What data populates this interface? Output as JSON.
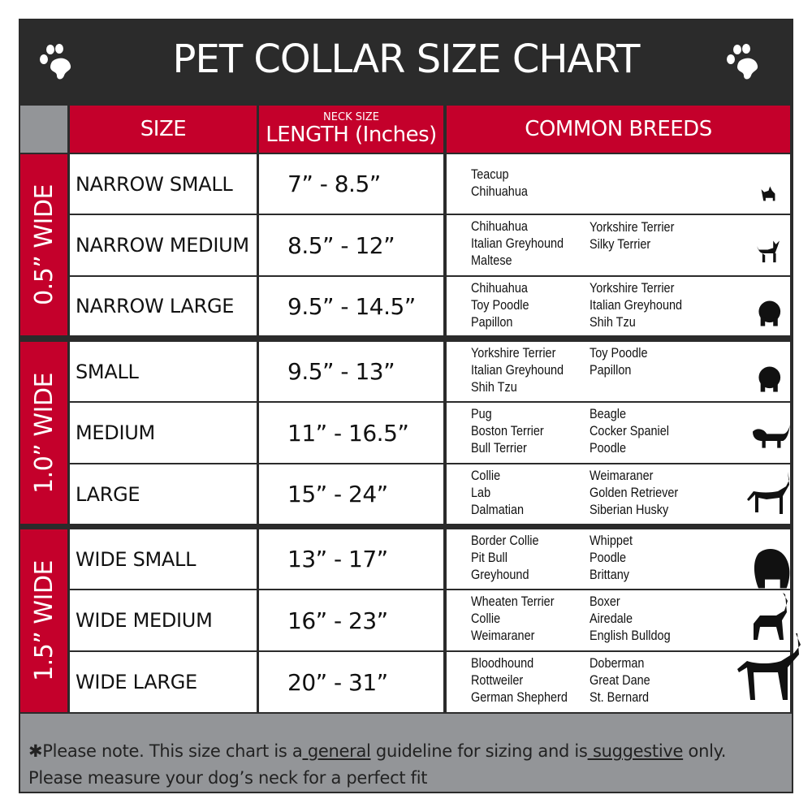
{
  "title": "PET COLLAR SIZE CHART",
  "headers": {
    "size": "SIZE",
    "length_small": "NECK SIZE",
    "length": "LENGTH (Inches)",
    "breeds": "COMMON BREEDS"
  },
  "groups": [
    "0.5” WIDE",
    "1.0” WIDE",
    "1.5” WIDE"
  ],
  "rows": [
    {
      "size": "NARROW SMALL",
      "length": "7” - 8.5”",
      "col1": [
        "Teacup",
        "Chihuahua"
      ],
      "col2": [],
      "dog": "yorkie-silhouette"
    },
    {
      "size": "NARROW MEDIUM",
      "length": "8.5” - 12”",
      "col1": [
        "Chihuahua",
        "Italian Greyhound",
        "Maltese"
      ],
      "col2": [
        "Yorkshire Terrier",
        "Silky Terrier"
      ],
      "dog": "chihuahua-silhouette"
    },
    {
      "size": "NARROW LARGE",
      "length": "9.5” - 14.5”",
      "col1": [
        "Chihuahua",
        "Toy Poodle",
        "Papillon"
      ],
      "col2": [
        "Yorkshire Terrier",
        "Italian Greyhound",
        "Shih Tzu"
      ],
      "dog": "pomeranian-silhouette"
    },
    {
      "size": "SMALL",
      "length": "9.5” - 13”",
      "col1": [
        "Yorkshire Terrier",
        "Italian Greyhound",
        "Shih Tzu"
      ],
      "col2": [
        "Toy Poodle",
        "Papillon"
      ],
      "dog": "pomeranian-silhouette"
    },
    {
      "size": "MEDIUM",
      "length": "11” - 16.5”",
      "col1": [
        "Pug",
        "Boston Terrier",
        "Bull Terrier"
      ],
      "col2": [
        "Beagle",
        "Cocker Spaniel",
        "Poodle"
      ],
      "dog": "dachshund-silhouette"
    },
    {
      "size": "LARGE",
      "length": "15” - 24”",
      "col1": [
        "Collie",
        "Lab",
        "Dalmatian"
      ],
      "col2": [
        "Weimaraner",
        "Golden Retriever",
        "Siberian Husky"
      ],
      "dog": "shepherd-silhouette"
    },
    {
      "size": "WIDE SMALL",
      "length": "13” - 17”",
      "col1": [
        "Border Collie",
        "Pit Bull",
        "Greyhound"
      ],
      "col2": [
        "Whippet",
        "Poodle",
        "Brittany"
      ],
      "dog": "bulldog-silhouette"
    },
    {
      "size": "WIDE MEDIUM",
      "length": "16” - 23”",
      "col1": [
        "Wheaten Terrier",
        "Collie",
        "Weimaraner"
      ],
      "col2": [
        "Boxer",
        "Airedale",
        "English Bulldog"
      ],
      "dog": "pitbull-silhouette"
    },
    {
      "size": "WIDE LARGE",
      "length": "20” - 31”",
      "col1": [
        "Bloodhound",
        "Rottweiler",
        "German Shepherd"
      ],
      "col2": [
        "Doberman",
        "Great Dane",
        "St. Bernard"
      ],
      "dog": "doberman-silhouette"
    }
  ],
  "footer": {
    "p1": "✱Please note. This size chart is a",
    "u1": " general",
    "p2": " guideline for sizing and is",
    "u2": " suggestive",
    "p3": " only.",
    "line2": "Please measure your dog’s neck for a perfect fit"
  },
  "colors": {
    "red": "#c4002b",
    "dark": "#2b2b2b",
    "gray": "#939598"
  }
}
